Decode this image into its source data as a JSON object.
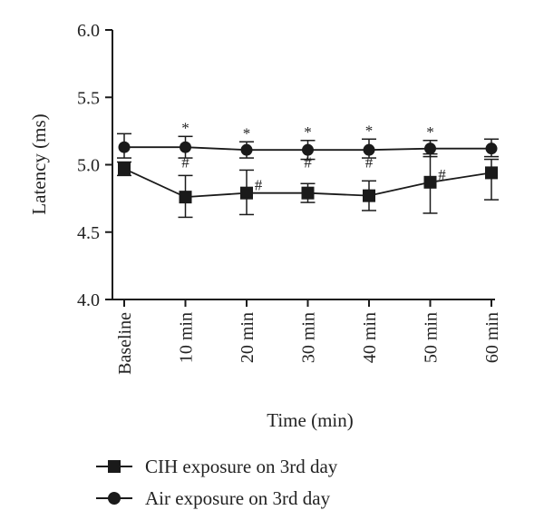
{
  "chart_data": {
    "type": "line",
    "title": "",
    "xlabel": "Time (min)",
    "ylabel": "Latency (ms)",
    "ylim": [
      4.0,
      6.0
    ],
    "yticks": [
      "4.0",
      "4.5",
      "5.0",
      "5.5",
      "6.0"
    ],
    "categories": [
      "Baseline",
      "10 min",
      "20 min",
      "30 min",
      "40 min",
      "50 min",
      "60 min"
    ],
    "series": [
      {
        "name": "CIH exposure on 3rd day",
        "marker": "square",
        "values": [
          4.97,
          4.76,
          4.79,
          4.79,
          4.77,
          4.87,
          4.94
        ],
        "err_low": [
          4.92,
          4.61,
          4.63,
          4.72,
          4.66,
          4.64,
          4.74
        ],
        "err_high": [
          5.02,
          4.92,
          4.96,
          4.86,
          4.88,
          5.08,
          5.04
        ]
      },
      {
        "name": "Air exposure on 3rd day",
        "marker": "circle",
        "values": [
          5.13,
          5.13,
          5.11,
          5.11,
          5.11,
          5.12,
          5.12
        ],
        "err_low": [
          5.05,
          5.05,
          5.05,
          5.04,
          5.05,
          5.06,
          5.06
        ],
        "err_high": [
          5.23,
          5.21,
          5.17,
          5.18,
          5.19,
          5.18,
          5.19
        ]
      }
    ],
    "annotations": {
      "star_symbol": "*",
      "star_categories": [
        "10 min",
        "20 min",
        "30 min",
        "40 min",
        "50 min"
      ],
      "hash_symbol": "#",
      "hash_categories": [
        "10 min",
        "20 min",
        "30 min",
        "40 min",
        "50 min"
      ]
    },
    "legend_position": "bottom-left",
    "grid": false,
    "color": "#1a1a1a"
  }
}
